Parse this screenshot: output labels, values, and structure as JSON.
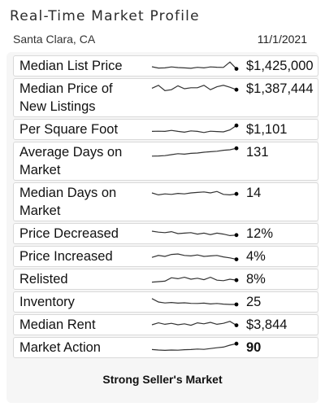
{
  "header": {
    "title": "Real-Time Market Profile",
    "location": "Santa Clara, CA",
    "date": "11/1/2021"
  },
  "metrics": [
    {
      "label_lines": [
        "Median List Price"
      ],
      "value": "$1,425,000",
      "bold": false,
      "trend": [
        0.42,
        0.28,
        0.3,
        0.4,
        0.33,
        0.3,
        0.26,
        0.36,
        0.3,
        0.4,
        0.37,
        0.35,
        0.9,
        0.2
      ]
    },
    {
      "label_lines": [
        "Median Price of",
        "New Listings"
      ],
      "value": "$1,387,444",
      "bold": false,
      "trend": [
        0.55,
        0.85,
        0.3,
        0.4,
        0.8,
        0.5,
        0.6,
        0.6,
        0.85,
        0.4,
        0.7,
        0.85,
        0.65,
        0.4
      ]
    },
    {
      "label_lines": [
        "Per Square Foot"
      ],
      "value": "$1,101",
      "bold": false,
      "trend": [
        0.3,
        0.32,
        0.3,
        0.4,
        0.3,
        0.22,
        0.35,
        0.3,
        0.18,
        0.32,
        0.28,
        0.25,
        0.45,
        0.9
      ]
    },
    {
      "label_lines": [
        "Average Days on",
        "Market"
      ],
      "value": "131",
      "bold": false,
      "trend": [
        0.1,
        0.12,
        0.15,
        0.25,
        0.35,
        0.3,
        0.38,
        0.42,
        0.5,
        0.55,
        0.6,
        0.7,
        0.75,
        0.9
      ]
    },
    {
      "label_lines": [
        "Median Days on",
        "Market"
      ],
      "value": "14",
      "bold": false,
      "trend": [
        0.5,
        0.3,
        0.4,
        0.35,
        0.45,
        0.4,
        0.5,
        0.55,
        0.6,
        0.5,
        0.65,
        0.35,
        0.3,
        0.4
      ]
    },
    {
      "label_lines": [
        "Price Decreased"
      ],
      "value": "12%",
      "bold": false,
      "trend": [
        0.75,
        0.65,
        0.6,
        0.7,
        0.5,
        0.55,
        0.6,
        0.45,
        0.55,
        0.4,
        0.55,
        0.45,
        0.3,
        0.35
      ]
    },
    {
      "label_lines": [
        "Price Increased"
      ],
      "value": "4%",
      "bold": false,
      "trend": [
        0.4,
        0.6,
        0.5,
        0.7,
        0.75,
        0.6,
        0.55,
        0.65,
        0.5,
        0.55,
        0.6,
        0.45,
        0.35,
        0.2
      ]
    },
    {
      "label_lines": [
        "Relisted"
      ],
      "value": "8%",
      "bold": false,
      "trend": [
        0.2,
        0.25,
        0.3,
        0.65,
        0.55,
        0.7,
        0.5,
        0.6,
        0.45,
        0.7,
        0.4,
        0.35,
        0.5,
        0.4
      ]
    },
    {
      "label_lines": [
        "Inventory"
      ],
      "value": "25",
      "bold": false,
      "trend": [
        0.85,
        0.5,
        0.4,
        0.45,
        0.38,
        0.42,
        0.36,
        0.35,
        0.38,
        0.3,
        0.35,
        0.28,
        0.25,
        0.25
      ]
    },
    {
      "label_lines": [
        "Median Rent"
      ],
      "value": "$3,844",
      "bold": false,
      "trend": [
        0.5,
        0.7,
        0.55,
        0.65,
        0.5,
        0.6,
        0.45,
        0.7,
        0.6,
        0.75,
        0.55,
        0.65,
        0.85,
        0.45
      ]
    },
    {
      "label_lines": [
        "Market Action"
      ],
      "value": "90",
      "bold": true,
      "trend": [
        0.3,
        0.25,
        0.22,
        0.25,
        0.23,
        0.28,
        0.3,
        0.35,
        0.32,
        0.4,
        0.48,
        0.55,
        0.75,
        0.9
      ]
    }
  ],
  "footer": {
    "verdict": "Strong Seller's Market"
  },
  "colors": {
    "spark_line": "#333333",
    "card_border": "#d9d9d9",
    "panel_bg": "#f6f6f6"
  }
}
